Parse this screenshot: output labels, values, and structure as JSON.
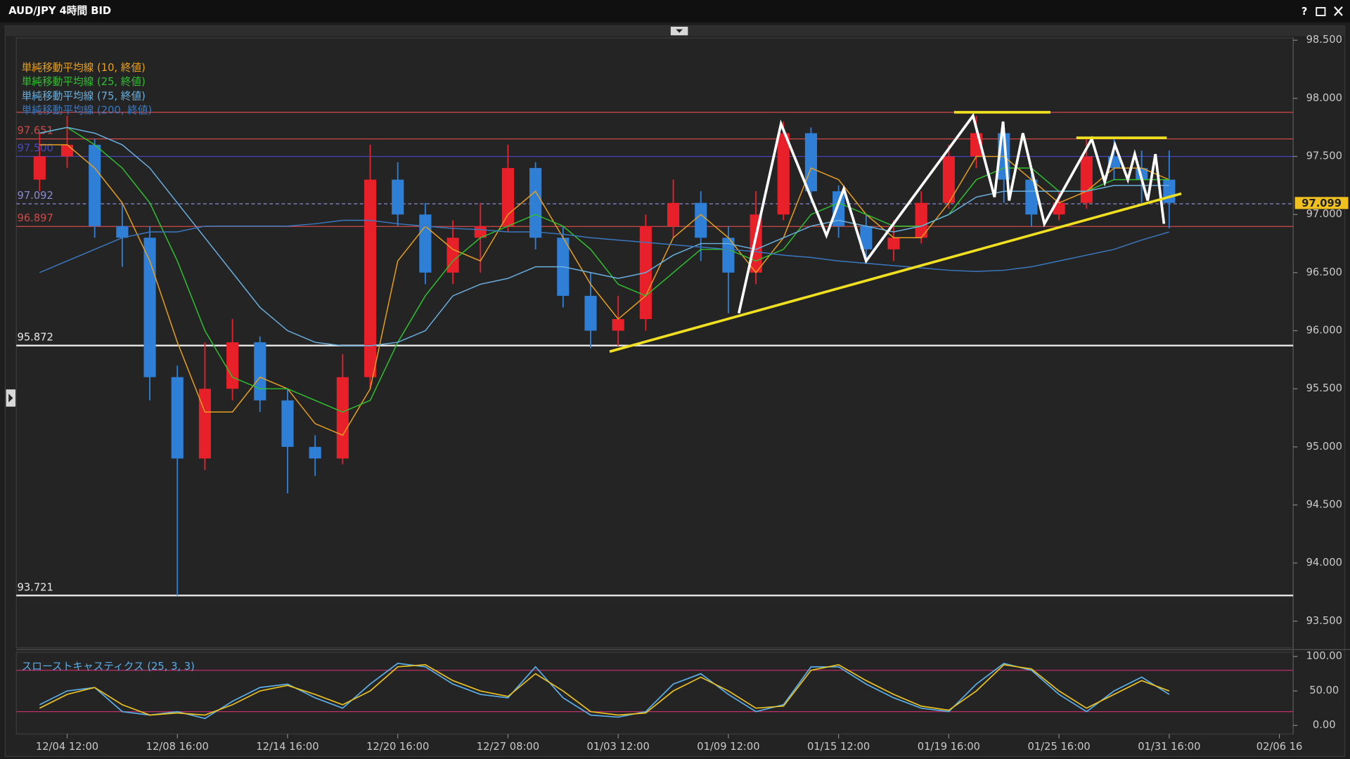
{
  "window": {
    "title": "AUD/JPY 4時間 BID",
    "help": "?"
  },
  "chart_data": [
    {
      "type": "candlestick",
      "categories": [
        null,
        "12/04 12:00",
        null,
        null,
        null,
        "12/08 16:00",
        null,
        null,
        null,
        "12/14 16:00",
        null,
        null,
        null,
        "12/20 16:00",
        null,
        null,
        null,
        "12/27 08:00",
        null,
        null,
        null,
        "01/03 12:00",
        null,
        null,
        null,
        "01/09 12:00",
        null,
        null,
        null,
        "01/15 12:00",
        null,
        null,
        null,
        "01/19 16:00",
        null,
        null,
        null,
        "01/25 16:00",
        null,
        null,
        null,
        "01/31 16:00",
        null,
        null,
        null,
        "02/06 16"
      ],
      "open": [
        97.3,
        97.5,
        97.6,
        96.9,
        96.8,
        95.6,
        94.9,
        95.5,
        95.9,
        95.4,
        95.0,
        94.9,
        95.6,
        97.3,
        97.0,
        96.5,
        96.8,
        96.9,
        97.4,
        96.8,
        96.3,
        96.0,
        96.1,
        96.9,
        97.1,
        96.8,
        96.5,
        97.0,
        97.7,
        97.2,
        96.9,
        96.7,
        96.8,
        97.1,
        97.5,
        97.7,
        97.3,
        97.0,
        97.1,
        97.5,
        97.4,
        97.3,
        null,
        null,
        null,
        null
      ],
      "high": [
        97.7,
        97.85,
        97.65,
        97.1,
        96.9,
        95.7,
        95.9,
        96.1,
        95.95,
        95.5,
        95.1,
        95.8,
        97.6,
        97.45,
        97.1,
        96.95,
        97.1,
        97.6,
        97.45,
        96.9,
        96.5,
        96.3,
        97.0,
        97.3,
        97.2,
        96.9,
        97.2,
        97.8,
        97.75,
        97.25,
        97.0,
        96.95,
        97.2,
        97.6,
        97.85,
        97.8,
        97.4,
        97.2,
        97.65,
        97.65,
        97.55,
        97.55,
        null,
        null,
        null,
        null
      ],
      "low": [
        97.2,
        97.4,
        96.8,
        96.55,
        95.4,
        93.72,
        94.8,
        95.4,
        95.3,
        94.6,
        94.75,
        94.85,
        95.5,
        96.9,
        96.4,
        96.4,
        96.5,
        96.85,
        96.7,
        96.2,
        95.85,
        95.87,
        96.0,
        96.8,
        96.6,
        96.15,
        96.4,
        96.95,
        97.1,
        96.8,
        96.6,
        96.6,
        96.75,
        97.05,
        97.4,
        97.1,
        96.9,
        96.95,
        97.05,
        97.3,
        97.1,
        96.88,
        null,
        null,
        null,
        null
      ],
      "close": [
        97.5,
        97.6,
        96.9,
        96.8,
        95.6,
        94.9,
        95.5,
        95.9,
        95.4,
        95.0,
        94.9,
        95.6,
        97.3,
        97.0,
        96.5,
        96.8,
        96.9,
        97.4,
        96.8,
        96.3,
        96.0,
        96.1,
        96.9,
        97.1,
        96.8,
        96.5,
        97.0,
        97.7,
        97.2,
        96.9,
        96.7,
        96.8,
        97.1,
        97.5,
        97.7,
        97.3,
        97.0,
        97.1,
        97.5,
        97.4,
        97.3,
        97.1,
        null,
        null,
        null,
        null
      ],
      "up_color": "#e8202a",
      "down_color": "#2f7fd6",
      "series": [
        {
          "name": "単純移動平均線 (10, 終値)",
          "color": "#e8a020",
          "values": [
            97.6,
            97.6,
            97.4,
            97.1,
            96.6,
            95.9,
            95.3,
            95.3,
            95.6,
            95.5,
            95.2,
            95.1,
            95.5,
            96.6,
            96.9,
            96.7,
            96.6,
            97.0,
            97.2,
            96.8,
            96.4,
            96.1,
            96.3,
            96.8,
            97.0,
            96.8,
            96.5,
            96.8,
            97.4,
            97.3,
            97.0,
            96.8,
            96.8,
            97.1,
            97.5,
            97.5,
            97.3,
            97.1,
            97.2,
            97.4,
            97.4,
            97.3,
            null,
            null,
            null,
            null
          ]
        },
        {
          "name": "単純移動平均線 (25, 終値)",
          "color": "#30c030",
          "values": [
            97.7,
            97.75,
            97.6,
            97.4,
            97.1,
            96.6,
            96.0,
            95.6,
            95.5,
            95.5,
            95.4,
            95.3,
            95.4,
            95.9,
            96.3,
            96.6,
            96.8,
            96.9,
            97.0,
            96.9,
            96.7,
            96.4,
            96.3,
            96.5,
            96.7,
            96.7,
            96.6,
            96.7,
            97.0,
            97.1,
            97.0,
            96.9,
            96.9,
            97.0,
            97.3,
            97.4,
            97.4,
            97.2,
            97.2,
            97.3,
            97.3,
            97.3,
            null,
            null,
            null,
            null
          ]
        },
        {
          "name": "単純移動平均線 (75, 終値)",
          "color": "#6ab0e0",
          "values": [
            97.7,
            97.75,
            97.7,
            97.6,
            97.4,
            97.1,
            96.8,
            96.5,
            96.2,
            96.0,
            95.9,
            95.87,
            95.87,
            95.9,
            96.0,
            96.3,
            96.4,
            96.45,
            96.55,
            96.55,
            96.5,
            96.45,
            96.5,
            96.65,
            96.75,
            96.75,
            96.7,
            96.8,
            96.9,
            96.95,
            96.9,
            96.85,
            96.9,
            97.0,
            97.15,
            97.2,
            97.2,
            97.2,
            97.2,
            97.25,
            97.25,
            97.25,
            null,
            null,
            null,
            null
          ]
        },
        {
          "name": "単純移動平均線 (200, 終値)",
          "color": "#3a78c0",
          "values": [
            96.5,
            96.6,
            96.7,
            96.8,
            96.85,
            96.85,
            96.9,
            96.9,
            96.9,
            96.9,
            96.92,
            96.95,
            96.95,
            96.92,
            96.9,
            96.88,
            96.87,
            96.85,
            96.85,
            96.83,
            96.8,
            96.78,
            96.76,
            96.74,
            96.72,
            96.7,
            96.68,
            96.65,
            96.63,
            96.6,
            96.58,
            96.56,
            96.54,
            96.52,
            96.51,
            96.52,
            96.55,
            96.6,
            96.65,
            96.7,
            96.78,
            96.85,
            null,
            null,
            null,
            null
          ]
        }
      ],
      "ylim": [
        93.27,
        98.52
      ],
      "yticks": [
        {
          "value": 98.5,
          "label": "98.500"
        },
        {
          "value": 98,
          "label": "98.000"
        },
        {
          "value": 97.5,
          "label": "97.500"
        },
        {
          "value": 97,
          "label": "97.000"
        },
        {
          "value": 96.5,
          "label": "96.500"
        },
        {
          "value": 96,
          "label": "96.000"
        },
        {
          "value": 95.5,
          "label": "95.500"
        },
        {
          "value": 95,
          "label": "95.000"
        },
        {
          "value": 94.5,
          "label": "94.500"
        },
        {
          "value": 94,
          "label": "94.000"
        },
        {
          "value": 93.5,
          "label": "93.500"
        }
      ],
      "grid": false,
      "levels": [
        {
          "value": 97.88,
          "label": null,
          "color": "#d04848"
        },
        {
          "value": 97.651,
          "color": "#d04848"
        },
        {
          "value": 97.5,
          "label": "97.500",
          "color": "#4848c0"
        },
        {
          "value": 97.092,
          "color": "#8a8ad0",
          "dashed": true
        },
        {
          "value": 96.897,
          "color": "#d04848"
        },
        {
          "value": 95.872,
          "color": "#e8e8e8"
        },
        {
          "value": 93.721,
          "color": "#e8e8e8"
        }
      ],
      "current_price": 97.099,
      "drawings": [
        {
          "color": "#ffffff",
          "points": [
            [
              25.38,
              96.15
            ],
            [
              26.91,
              97.78
            ],
            [
              28.56,
              96.82
            ],
            [
              29.19,
              97.22
            ],
            [
              30.0,
              96.6
            ],
            [
              33.88,
              97.85
            ],
            [
              34.66,
              97.15
            ],
            [
              34.97,
              97.8
            ],
            [
              35.19,
              97.12
            ],
            [
              35.69,
              97.7
            ],
            [
              36.47,
              96.92
            ],
            [
              38.19,
              97.65
            ],
            [
              38.66,
              97.28
            ],
            [
              39.03,
              97.6
            ],
            [
              39.5,
              97.3
            ],
            [
              39.75,
              97.52
            ],
            [
              40.22,
              97.12
            ],
            [
              40.5,
              97.52
            ],
            [
              40.81,
              96.92
            ]
          ]
        },
        {
          "color": "#f0e020",
          "points": [
            [
              20.69,
              95.82
            ],
            [
              41.44,
              97.18
            ]
          ]
        },
        {
          "color": "#f0e020",
          "points": [
            [
              33.19,
              97.88
            ],
            [
              36.69,
              97.88
            ]
          ]
        },
        {
          "color": "#f0e020",
          "points": [
            [
              37.63,
              97.66
            ],
            [
              40.91,
              97.66
            ]
          ]
        }
      ]
    },
    {
      "type": "line",
      "title": "スローストキャスティクス (25, 3, 3)",
      "series": [
        {
          "color": "#5aaee8",
          "values": [
            30,
            50,
            55,
            20,
            15,
            20,
            10,
            35,
            55,
            60,
            40,
            25,
            60,
            90,
            85,
            60,
            45,
            40,
            85,
            40,
            15,
            12,
            20,
            60,
            75,
            45,
            20,
            30,
            85,
            85,
            60,
            40,
            25,
            20,
            60,
            90,
            80,
            45,
            20,
            50,
            70,
            45,
            null,
            null,
            null,
            null
          ]
        },
        {
          "color": "#e8c020",
          "values": [
            25,
            45,
            55,
            30,
            15,
            18,
            15,
            30,
            50,
            58,
            45,
            30,
            50,
            85,
            88,
            65,
            50,
            42,
            75,
            50,
            20,
            15,
            18,
            50,
            70,
            50,
            25,
            28,
            80,
            88,
            65,
            45,
            28,
            22,
            50,
            88,
            82,
            50,
            25,
            45,
            65,
            50,
            null,
            null,
            null,
            null
          ]
        }
      ],
      "ylim": [
        -12.5,
        106.25
      ],
      "yticks": [
        {
          "value": 100,
          "label": "100.00"
        },
        {
          "value": 50,
          "label": "50.00"
        },
        {
          "value": 0,
          "label": "0.00"
        }
      ],
      "levels": [
        {
          "value": 80,
          "color": "#c0306a"
        },
        {
          "value": 20,
          "color": "#c0306a"
        }
      ]
    }
  ]
}
